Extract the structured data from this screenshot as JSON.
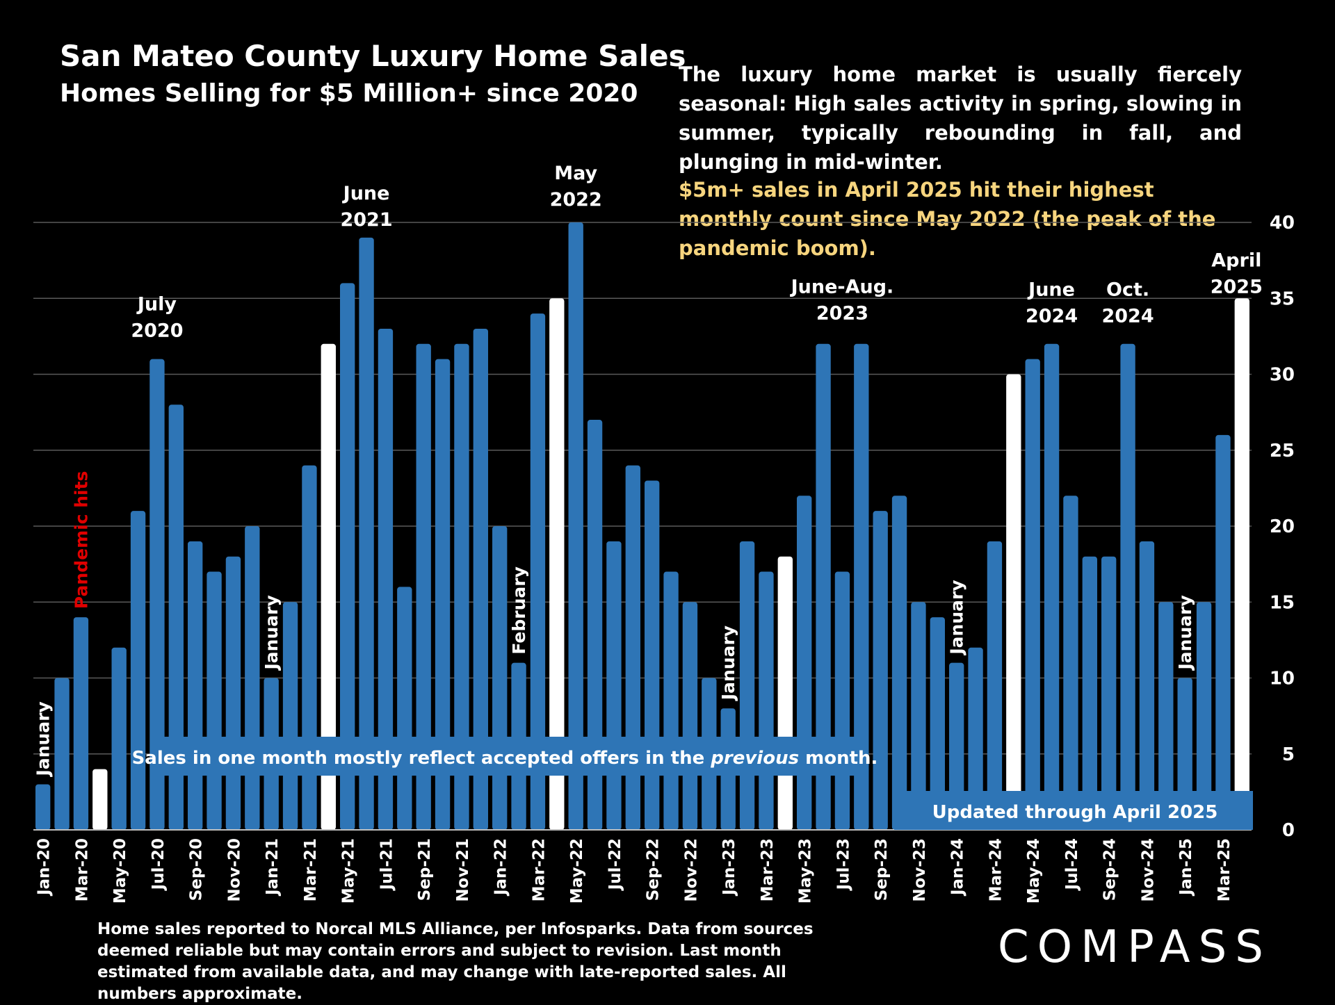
{
  "header": {
    "title": "San Mateo County Luxury Home Sales",
    "subtitle": "Homes Selling for $5 Million+ since 2020"
  },
  "commentary": {
    "paragraph": "The luxury home market is usually fiercely seasonal: High sales activity in spring, slowing in summer, typically rebounding in fall, and plunging in mid-winter.",
    "highlight": "$5m+ sales in April 2025 hit their highest monthly count since May 2022 (the peak of the pandemic boom)."
  },
  "footnote": "Home sales reported to Norcal MLS Alliance, per Infosparks. Data from sources deemed reliable but may contain errors and subject to revision.  Last month estimated from available data, and may change with late-reported sales. All numbers approximate.",
  "logo": "COMPASS",
  "colors": {
    "bar": "#2e75b6",
    "highlight_bar": "#ffffff",
    "highlight_text": "#f7d57e",
    "pandemic_text": "#e00000",
    "background": "#000000"
  },
  "chart_data": {
    "type": "bar",
    "months": [
      "Jan-20",
      "Feb-20",
      "Mar-20",
      "Apr-20",
      "May-20",
      "Jun-20",
      "Jul-20",
      "Aug-20",
      "Sep-20",
      "Oct-20",
      "Nov-20",
      "Dec-20",
      "Jan-21",
      "Feb-21",
      "Mar-21",
      "Apr-21",
      "May-21",
      "Jun-21",
      "Jul-21",
      "Aug-21",
      "Sep-21",
      "Oct-21",
      "Nov-21",
      "Dec-21",
      "Jan-22",
      "Feb-22",
      "Mar-22",
      "Apr-22",
      "May-22",
      "Jun-22",
      "Jul-22",
      "Aug-22",
      "Sep-22",
      "Oct-22",
      "Nov-22",
      "Dec-22",
      "Jan-23",
      "Feb-23",
      "Mar-23",
      "Apr-23",
      "May-23",
      "Jun-23",
      "Jul-23",
      "Aug-23",
      "Sep-23",
      "Oct-23",
      "Nov-23",
      "Dec-23",
      "Jan-24",
      "Feb-24",
      "Mar-24",
      "Apr-24",
      "May-24",
      "Jun-24",
      "Jul-24",
      "Aug-24",
      "Sep-24",
      "Oct-24",
      "Nov-24",
      "Dec-24",
      "Jan-25",
      "Feb-25",
      "Mar-25",
      "Apr-25"
    ],
    "values": [
      3,
      10,
      14,
      4,
      12,
      21,
      31,
      28,
      19,
      17,
      18,
      20,
      10,
      15,
      24,
      32,
      36,
      39,
      33,
      16,
      32,
      31,
      32,
      33,
      20,
      11,
      34,
      35,
      40,
      27,
      19,
      24,
      23,
      17,
      15,
      10,
      8,
      19,
      17,
      18,
      22,
      32,
      17,
      32,
      21,
      22,
      15,
      14,
      11,
      12,
      19,
      30,
      31,
      32,
      22,
      18,
      18,
      32,
      19,
      15,
      10,
      15,
      26,
      35
    ],
    "highlighted": [
      "Apr-20",
      "Apr-21",
      "Apr-22",
      "Apr-23",
      "Apr-24",
      "Apr-25"
    ],
    "x_tick_labels": [
      "Jan-20",
      "Mar-20",
      "May-20",
      "Jul-20",
      "Sep-20",
      "Nov-20",
      "Jan-21",
      "Mar-21",
      "May-21",
      "Jul-21",
      "Sep-21",
      "Nov-21",
      "Jan-22",
      "Mar-22",
      "May-22",
      "Jul-22",
      "Sep-22",
      "Nov-22",
      "Jan-23",
      "Mar-23",
      "May-23",
      "Jul-23",
      "Sep-23",
      "Nov-23",
      "Jan-24",
      "Mar-24",
      "May-24",
      "Jul-24",
      "Sep-24",
      "Nov-24",
      "Jan-25",
      "Mar-25"
    ],
    "y_ticks": [
      0,
      5,
      10,
      15,
      20,
      25,
      30,
      35,
      40
    ],
    "ylim": [
      0,
      40
    ],
    "y_axis_side": "right",
    "grid": true,
    "annotations": [
      {
        "text": "January",
        "month": "Jan-20",
        "orientation": "vertical"
      },
      {
        "text": "Pandemic hits",
        "month": "Mar-20",
        "orientation": "vertical",
        "color": "#e00000"
      },
      {
        "text": "July 2020",
        "month": "Jul-20",
        "lines": [
          "July",
          "2020"
        ]
      },
      {
        "text": "January",
        "month": "Jan-21",
        "orientation": "vertical"
      },
      {
        "text": "June 2021",
        "month": "Jun-21",
        "lines": [
          "June",
          "2021"
        ]
      },
      {
        "text": "February",
        "month": "Feb-22",
        "orientation": "vertical"
      },
      {
        "text": "May 2022",
        "month": "May-22",
        "lines": [
          "May",
          "2022"
        ]
      },
      {
        "text": "January",
        "month": "Jan-23",
        "orientation": "vertical"
      },
      {
        "text": "June-Aug. 2023",
        "month": "Jul-23",
        "lines": [
          "June-Aug.",
          "2023"
        ]
      },
      {
        "text": "January",
        "month": "Jan-24",
        "orientation": "vertical"
      },
      {
        "text": "June 2024",
        "month": "Jun-24",
        "lines": [
          "June",
          "2024"
        ]
      },
      {
        "text": "Oct. 2024",
        "month": "Oct-24",
        "lines": [
          "Oct.",
          "2024"
        ]
      },
      {
        "text": "January",
        "month": "Jan-25",
        "orientation": "vertical"
      },
      {
        "text": "April 2025",
        "month": "Apr-25",
        "lines": [
          "April",
          "2025"
        ]
      }
    ],
    "notes": [
      {
        "text_parts": [
          "Sales in one month mostly reflect accepted offers in the ",
          "previous",
          " month."
        ],
        "italic_part": 1
      },
      {
        "text_parts": [
          "Updated through April 2025"
        ]
      }
    ]
  }
}
